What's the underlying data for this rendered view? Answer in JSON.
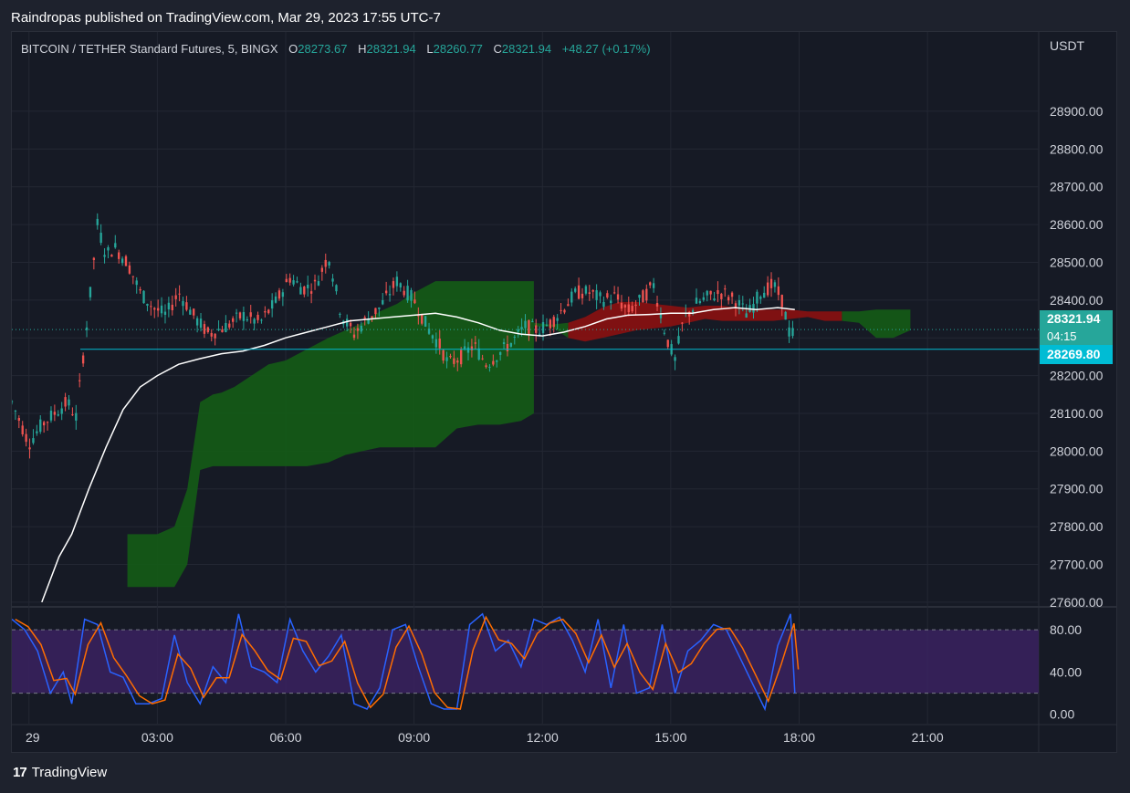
{
  "header": {
    "published_text": "Raindropas published on TradingView.com, Mar 29, 2023 17:55 UTC-7"
  },
  "symbol": {
    "name": "BITCOIN / TETHER Standard Futures, 5, BINGX",
    "open_label": "O",
    "open": "28273.67",
    "high_label": "H",
    "high": "28321.94",
    "low_label": "L",
    "low": "28260.77",
    "close_label": "C",
    "close": "28321.94",
    "change": "+48.27 (+0.17%)"
  },
  "price_axis": {
    "unit": "USDT"
  },
  "price_tags": {
    "last_price": "28321.94",
    "countdown": "04:15",
    "line_price": "28269.80"
  },
  "footer": {
    "brand": "TradingView"
  },
  "colors": {
    "up": "#26a69a",
    "down": "#ef5350",
    "cloud_green": "#145c16",
    "cloud_red": "#8b1111",
    "ma_line": "#ffffff",
    "stoch_k": "#2962ff",
    "stoch_d": "#ff6d00",
    "stoch_band": "#3a2260",
    "hline": "#00bcd4"
  },
  "chart_data": [
    {
      "type": "line",
      "title": "BITCOIN / TETHER Standard Futures, 5, BINGX",
      "xlabel": "",
      "ylabel": "USDT",
      "x_ticks": [
        "29",
        "03:00",
        "06:00",
        "09:00",
        "12:00",
        "15:00",
        "18:00",
        "21:00"
      ],
      "x_tick_hours": [
        0,
        3,
        6,
        9,
        12,
        15,
        18,
        21
      ],
      "xlim_hours": [
        -0.4,
        23.6
      ],
      "y_ticks": [
        "27600.00",
        "27700.00",
        "27800.00",
        "27900.00",
        "28000.00",
        "28100.00",
        "28200.00",
        "28300.00",
        "28400.00",
        "28500.00",
        "28600.00",
        "28700.00",
        "28800.00",
        "28900.00"
      ],
      "y_tick_values": [
        27600,
        27700,
        27800,
        27900,
        28000,
        28100,
        28200,
        28300,
        28400,
        28500,
        28600,
        28700,
        28800,
        28900
      ],
      "ylim": [
        27590,
        29040
      ],
      "price_path": {
        "t": [
          -0.4,
          0.0,
          0.3,
          0.6,
          0.9,
          1.1,
          1.4,
          1.6,
          1.8,
          2.0,
          2.3,
          2.6,
          2.9,
          3.2,
          3.5,
          3.9,
          4.2,
          4.6,
          5.0,
          5.4,
          5.8,
          6.1,
          6.4,
          6.7,
          7.0,
          7.3,
          7.6,
          7.9,
          8.2,
          8.6,
          9.0,
          9.3,
          9.6,
          9.8,
          10.1,
          10.4,
          10.7,
          11.0,
          11.3,
          11.6,
          11.9,
          12.2,
          12.5,
          12.8,
          13.1,
          13.4,
          13.7,
          14.0,
          14.3,
          14.6,
          14.9,
          15.1,
          15.3,
          15.6,
          15.9,
          16.2,
          16.5,
          16.8,
          17.1,
          17.4,
          17.6,
          17.8,
          17.9
        ],
        "v": [
          28130,
          28020,
          28070,
          28100,
          28130,
          28090,
          28380,
          28600,
          28520,
          28540,
          28500,
          28420,
          28380,
          28360,
          28420,
          28350,
          28310,
          28330,
          28360,
          28340,
          28400,
          28460,
          28430,
          28440,
          28520,
          28360,
          28310,
          28350,
          28380,
          28450,
          28400,
          28330,
          28280,
          28230,
          28250,
          28280,
          28230,
          28260,
          28290,
          28330,
          28320,
          28340,
          28380,
          28420,
          28420,
          28400,
          28410,
          28370,
          28400,
          28440,
          28300,
          28240,
          28350,
          28390,
          28410,
          28420,
          28400,
          28360,
          28420,
          28440,
          28400,
          28300,
          28321.94
        ]
      },
      "ma": {
        "t": [
          0.3,
          0.7,
          1.0,
          1.4,
          1.8,
          2.2,
          2.6,
          3.0,
          3.5,
          4.0,
          4.5,
          5.0,
          5.5,
          6.0,
          6.5,
          7.0,
          7.5,
          8.0,
          8.5,
          9.0,
          9.5,
          10.0,
          10.5,
          11.0,
          11.5,
          12.0,
          12.5,
          13.0,
          13.5,
          14.0,
          14.5,
          15.0,
          15.5,
          16.0,
          16.5,
          17.0,
          17.5,
          17.9
        ],
        "v": [
          27600,
          27720,
          27780,
          27900,
          28010,
          28110,
          28170,
          28200,
          28230,
          28245,
          28258,
          28265,
          28280,
          28300,
          28315,
          28330,
          28345,
          28350,
          28355,
          28360,
          28365,
          28355,
          28340,
          28320,
          28310,
          28305,
          28315,
          28330,
          28350,
          28360,
          28362,
          28365,
          28365,
          28375,
          28380,
          28375,
          28380,
          28375
        ]
      },
      "cloud": {
        "t": [
          2.3,
          3.0,
          3.4,
          3.7,
          4.0,
          4.3,
          4.5,
          4.8,
          5.2,
          5.6,
          6.0,
          6.5,
          7.0,
          7.4,
          7.8,
          8.2,
          8.6,
          9.0,
          9.5,
          10.0,
          10.5,
          11.0,
          11.5,
          11.8
        ],
        "top": [
          27780,
          27780,
          27800,
          27900,
          28130,
          28150,
          28155,
          28170,
          28200,
          28230,
          28240,
          28270,
          28300,
          28320,
          28340,
          28370,
          28390,
          28420,
          28450,
          28450,
          28450,
          28450,
          28450,
          28450
        ],
        "bottom": [
          27640,
          27640,
          27640,
          27700,
          27950,
          27960,
          27960,
          27960,
          27960,
          27960,
          27960,
          27960,
          27970,
          27990,
          28000,
          28010,
          28010,
          28010,
          28010,
          28060,
          28070,
          28070,
          28080,
          28100
        ]
      },
      "cloud2": {
        "t": [
          11.8,
          12.2,
          12.6,
          13.0,
          13.4,
          13.8,
          14.2,
          14.6,
          15.0,
          15.4,
          15.8,
          16.2,
          16.6,
          17.0,
          17.4,
          17.8,
          18.2,
          18.6,
          19.0,
          19.4,
          19.8,
          20.2,
          20.6
        ],
        "top": [
          28340,
          28335,
          28340,
          28355,
          28380,
          28395,
          28395,
          28390,
          28385,
          28380,
          28385,
          28385,
          28380,
          28375,
          28375,
          28375,
          28370,
          28370,
          28370,
          28370,
          28375,
          28375,
          28375
        ],
        "bottom": [
          28330,
          28330,
          28300,
          28290,
          28300,
          28310,
          28320,
          28325,
          28330,
          28340,
          28350,
          28345,
          28345,
          28345,
          28345,
          28350,
          28355,
          28345,
          28345,
          28340,
          28300,
          28300,
          28320
        ],
        "green_before_hours": 12.6,
        "green_after_hours": 19.0
      },
      "horizontal_line": 28269.8,
      "last_price": 28321.94
    },
    {
      "type": "line",
      "title": "",
      "y_ticks": [
        "80.00",
        "40.00",
        "0.00"
      ],
      "y_tick_values": [
        80,
        40,
        0
      ],
      "ylim": [
        -8,
        100
      ],
      "band": [
        20,
        80
      ],
      "series": [
        {
          "t": [
            -0.4,
            -0.1,
            0.2,
            0.5,
            0.8,
            1.0,
            1.3,
            1.6,
            1.9,
            2.2,
            2.5,
            2.8,
            3.1,
            3.4,
            3.7,
            4.0,
            4.3,
            4.6,
            4.9,
            5.2,
            5.5,
            5.8,
            6.1,
            6.4,
            6.7,
            7.0,
            7.3,
            7.6,
            7.9,
            8.2,
            8.5,
            8.8,
            9.1,
            9.4,
            9.7,
            10.0,
            10.3,
            10.6,
            10.9,
            11.2,
            11.5,
            11.8,
            12.1,
            12.4,
            12.7,
            13.0,
            13.3,
            13.6,
            13.9,
            14.2,
            14.5,
            14.8,
            15.1,
            15.4,
            15.7,
            16.0,
            16.3,
            16.6,
            16.9,
            17.2,
            17.5,
            17.8,
            17.9
          ],
          "v": [
            90,
            80,
            60,
            20,
            40,
            10,
            90,
            85,
            40,
            35,
            10,
            10,
            15,
            75,
            30,
            10,
            45,
            30,
            95,
            45,
            40,
            30,
            90,
            60,
            40,
            55,
            75,
            10,
            5,
            25,
            80,
            85,
            45,
            10,
            5,
            5,
            85,
            95,
            60,
            70,
            45,
            90,
            85,
            92,
            70,
            40,
            90,
            25,
            85,
            20,
            25,
            85,
            20,
            60,
            70,
            85,
            80,
            55,
            30,
            5,
            65,
            95,
            20
          ]
        }
      ]
    }
  ]
}
